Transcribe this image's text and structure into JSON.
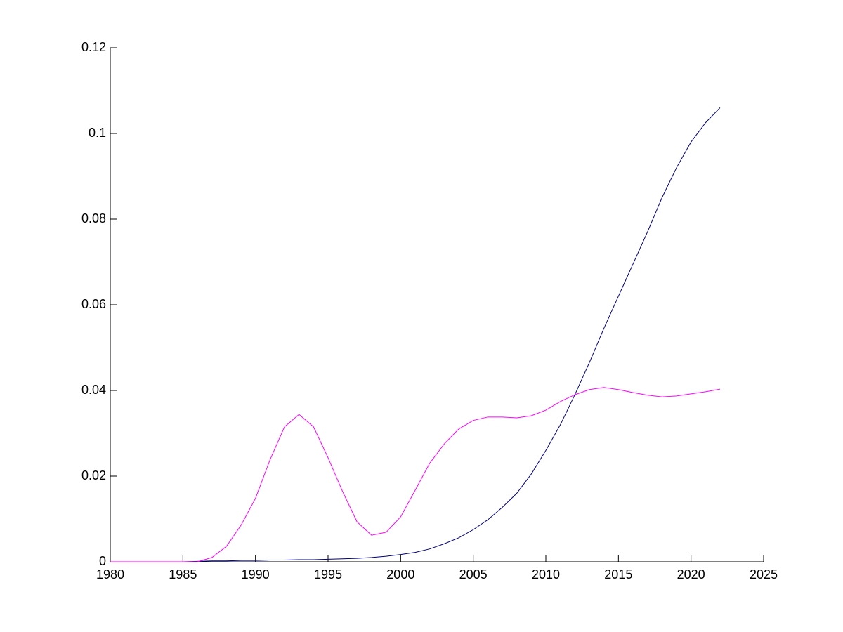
{
  "chart_data": {
    "type": "line",
    "x": [
      1980,
      1981,
      1982,
      1983,
      1984,
      1985,
      1986,
      1987,
      1988,
      1989,
      1990,
      1991,
      1992,
      1993,
      1994,
      1995,
      1996,
      1997,
      1998,
      1999,
      2000,
      2001,
      2002,
      2003,
      2004,
      2005,
      2006,
      2007,
      2008,
      2009,
      2010,
      2011,
      2012,
      2013,
      2014,
      2015,
      2016,
      2017,
      2018,
      2019,
      2020,
      2021,
      2022
    ],
    "series": [
      {
        "color": "#00007f",
        "values": [
          0,
          0,
          0,
          0,
          0,
          0,
          0.0001,
          0.0002,
          0.0002,
          0.0003,
          0.0003,
          0.0004,
          0.0004,
          0.0005,
          0.0005,
          0.0006,
          0.0007,
          0.0008,
          0.001,
          0.0013,
          0.0017,
          0.0022,
          0.003,
          0.0042,
          0.0056,
          0.0075,
          0.0098,
          0.0127,
          0.016,
          0.0205,
          0.026,
          0.032,
          0.039,
          0.0465,
          0.0545,
          0.062,
          0.0695,
          0.077,
          0.085,
          0.092,
          0.098,
          0.1025,
          0.106
        ]
      },
      {
        "color": "#ff00ff",
        "values": [
          0,
          0,
          0,
          0,
          0,
          0,
          0,
          0.001,
          0.0036,
          0.0085,
          0.0148,
          0.0238,
          0.0315,
          0.0344,
          0.0315,
          0.0243,
          0.0164,
          0.0093,
          0.0062,
          0.0069,
          0.0105,
          0.0167,
          0.023,
          0.0275,
          0.031,
          0.033,
          0.0338,
          0.0338,
          0.0336,
          0.0341,
          0.0354,
          0.0374,
          0.039,
          0.0402,
          0.0407,
          0.0402,
          0.0395,
          0.0389,
          0.0385,
          0.0387,
          0.0392,
          0.0397,
          0.0403
        ]
      }
    ],
    "xlim": [
      1980,
      2025
    ],
    "xticks": [
      1980,
      1985,
      1990,
      1995,
      2000,
      2005,
      2010,
      2015,
      2020,
      2025
    ],
    "ylim": [
      0,
      0.12
    ],
    "yticks": [
      0,
      0.02,
      0.04,
      0.06,
      0.08,
      0.1,
      0.12
    ],
    "grid": false
  }
}
